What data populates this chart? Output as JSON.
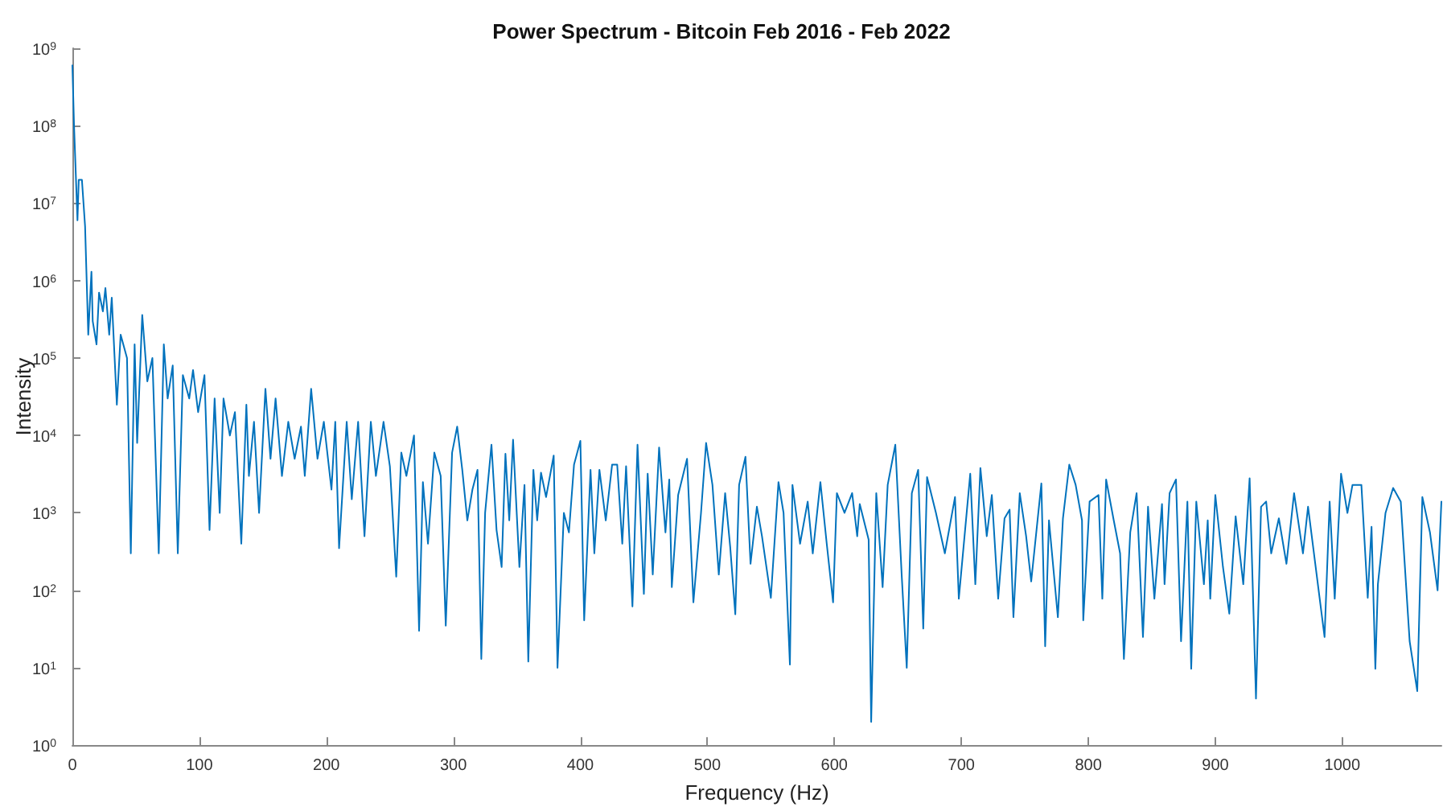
{
  "chart_data": {
    "type": "line",
    "title": "Power Spectrum - Bitcoin Feb 2016 - Feb 2022",
    "xlabel": "Frequency (Hz)",
    "ylabel": "Intensity",
    "log": "y",
    "grid": false,
    "marker": "none",
    "line_style": "solid",
    "xlim": [
      0,
      1078
    ],
    "xticks": [
      0,
      100,
      200,
      300,
      400,
      500,
      600,
      700,
      800,
      900,
      1000
    ],
    "ylim": [
      1,
      1000000000
    ],
    "yticks": [
      {
        "value": 1,
        "label": "10$^{0}$"
      },
      {
        "value": 10,
        "label": "10$^{1}$"
      },
      {
        "value": 100,
        "label": "10$^{2}$"
      },
      {
        "value": 1000,
        "label": "10$^{3}$"
      },
      {
        "value": 10000,
        "label": "10$^{4}$"
      },
      {
        "value": 100000,
        "label": "10$^{5}$"
      },
      {
        "value": 1000000,
        "label": "10$^{6}$"
      },
      {
        "value": 10000000,
        "label": "10$^{7}$"
      },
      {
        "value": 100000000,
        "label": "10$^{8}$"
      },
      {
        "value": 1000000000,
        "label": "10$^{9}$"
      }
    ],
    "series": [
      {
        "color": "#0072bd",
        "x": [
          0,
          1.3,
          4,
          5,
          7.5,
          10,
          12.5,
          15,
          16,
          19,
          21,
          24,
          26,
          29,
          31,
          35,
          38,
          43,
          46,
          49,
          51,
          55,
          59,
          63,
          68,
          72,
          75,
          79,
          83,
          87,
          92,
          95,
          99,
          104,
          108,
          112,
          116,
          119,
          124,
          128,
          133,
          137,
          139,
          143,
          147,
          152,
          156,
          160,
          165,
          170,
          175,
          180,
          183,
          188,
          193,
          198,
          204,
          207,
          210,
          216,
          220,
          225,
          230,
          235,
          239,
          245,
          250,
          255,
          259,
          263,
          269,
          273,
          276,
          280,
          285,
          290,
          294,
          299,
          303,
          307,
          311,
          315,
          319,
          322,
          325,
          330,
          334,
          338,
          341,
          344,
          347,
          352,
          356,
          359,
          363,
          366,
          369,
          373,
          379,
          382,
          387,
          391,
          395,
          400,
          403,
          408,
          411,
          415,
          420,
          425,
          429,
          433,
          436,
          441,
          445,
          450,
          453,
          457,
          462,
          467,
          470,
          472,
          477,
          484,
          489,
          495,
          499,
          504,
          509,
          514,
          518,
          522,
          525,
          530,
          534,
          539,
          543,
          550,
          556,
          560,
          565,
          567,
          573,
          579,
          583,
          589,
          594,
          599,
          602,
          608,
          614,
          618,
          620,
          627,
          629,
          633,
          638,
          642,
          648,
          653,
          657,
          661,
          666,
          670,
          673,
          680,
          687,
          695,
          698,
          707,
          711,
          715,
          720,
          724,
          729,
          734,
          738,
          741,
          746,
          751,
          755,
          763,
          766,
          769,
          776,
          780,
          785,
          790,
          795,
          796,
          801,
          808,
          811,
          814,
          820,
          825,
          828,
          833,
          838,
          843,
          847,
          852,
          858,
          860,
          864,
          869,
          873,
          878,
          881,
          885,
          891,
          894,
          896,
          900,
          906,
          911,
          916,
          922,
          927,
          932,
          936,
          940,
          944,
          950,
          956,
          962,
          969,
          973,
          979,
          986,
          990,
          994,
          999,
          1004,
          1008,
          1015,
          1020,
          1023,
          1026,
          1028,
          1034,
          1040,
          1046,
          1053,
          1059,
          1063,
          1069,
          1075,
          1078
        ],
        "values": [
          600000000,
          100000000,
          6000000,
          20000000,
          20000000,
          5000000,
          200000,
          1300000,
          300000,
          150000,
          700000,
          400000,
          800000,
          200000,
          600000,
          25000,
          200000,
          100000,
          300,
          150000,
          8000,
          360000,
          50000,
          100000,
          300,
          150000,
          30000,
          80000,
          300,
          60000,
          30000,
          70000,
          20000,
          60000,
          600,
          30000,
          1000,
          30000,
          10000,
          20000,
          400,
          25000,
          3000,
          15000,
          1000,
          40000,
          5000,
          30000,
          3000,
          15000,
          5000,
          13000,
          3000,
          40000,
          5000,
          15000,
          2000,
          15000,
          350,
          15000,
          1500,
          15000,
          500,
          15000,
          3000,
          15000,
          4000,
          150,
          6000,
          3000,
          10000,
          30,
          2500,
          400,
          6000,
          3000,
          35,
          6000,
          13000,
          3600,
          800,
          2000,
          3600,
          13,
          1000,
          7600,
          600,
          200,
          5800,
          800,
          8800,
          200,
          2300,
          12,
          3600,
          800,
          3300,
          1600,
          5500,
          10,
          1000,
          560,
          4200,
          8500,
          41,
          3600,
          300,
          3600,
          800,
          4200,
          4200,
          400,
          4000,
          62,
          7600,
          90,
          3200,
          160,
          7000,
          560,
          2700,
          110,
          1700,
          5000,
          70,
          1000,
          8000,
          2300,
          160,
          1800,
          360,
          49,
          2300,
          5300,
          220,
          1200,
          500,
          80,
          2500,
          1000,
          11,
          2300,
          400,
          1400,
          300,
          2500,
          400,
          70,
          1800,
          1000,
          1800,
          500,
          1300,
          450,
          2,
          1800,
          110,
          2300,
          7600,
          160,
          10,
          1800,
          3600,
          32,
          2900,
          1000,
          300,
          1600,
          78,
          3200,
          120,
          3800,
          500,
          1700,
          78,
          850,
          1100,
          45,
          1800,
          500,
          130,
          2400,
          19,
          800,
          45,
          850,
          4200,
          2300,
          800,
          41,
          1400,
          1700,
          78,
          2700,
          800,
          300,
          13,
          560,
          1800,
          25,
          1200,
          78,
          1300,
          120,
          1800,
          2700,
          22,
          1400,
          9.7,
          1400,
          120,
          800,
          78,
          1700,
          200,
          50,
          900,
          120,
          2800,
          4,
          1200,
          1400,
          300,
          850,
          220,
          1800,
          300,
          1200,
          200,
          25,
          1400,
          78,
          3200,
          1000,
          2300,
          2300,
          80,
          660,
          9.7,
          120,
          1000,
          2100,
          1400,
          22,
          5,
          1600,
          560,
          100,
          1400
        ]
      }
    ]
  }
}
